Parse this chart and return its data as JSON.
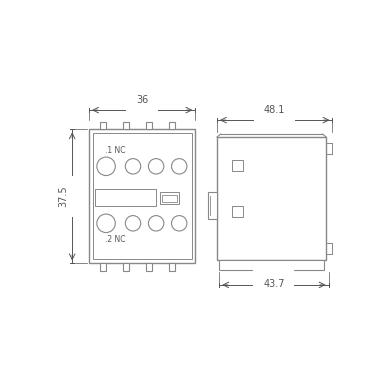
{
  "bg_color": "#ffffff",
  "line_color": "#888888",
  "dim_color": "#555555",
  "text_color": "#555555",
  "fig_size": [
    3.85,
    3.85
  ],
  "dpi": 100,
  "view1": {
    "label_1nc": ".1 NC",
    "label_2nc": ".2 NC",
    "dim_top_label": "36",
    "dim_left_label": "37.5"
  },
  "view2": {
    "dim_top_label": "48.1",
    "dim_bot_label": "43.7"
  }
}
